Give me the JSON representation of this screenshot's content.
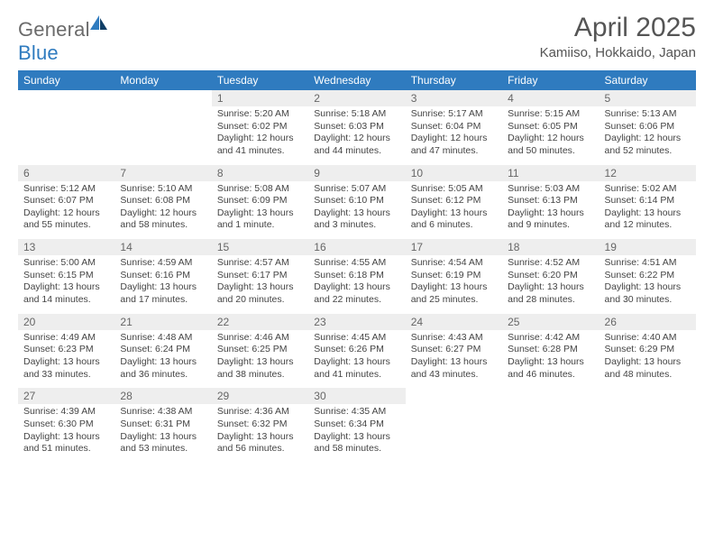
{
  "brand": {
    "general": "General",
    "blue": "Blue"
  },
  "title": "April 2025",
  "location": "Kamiiso, Hokkaido, Japan",
  "colors": {
    "header_bg": "#2f7bbf",
    "header_text": "#ffffff",
    "daynum_bg": "#eeeeee",
    "rule": "#2f7bbf",
    "page_bg": "#ffffff",
    "text": "#444444",
    "title_text": "#555555"
  },
  "typography": {
    "title_fontsize": 30,
    "location_fontsize": 15,
    "header_fontsize": 12,
    "daynum_fontsize": 12,
    "body_fontsize": 10.5
  },
  "weekdays": [
    "Sunday",
    "Monday",
    "Tuesday",
    "Wednesday",
    "Thursday",
    "Friday",
    "Saturday"
  ],
  "weeks": [
    [
      {
        "empty": true
      },
      {
        "empty": true
      },
      {
        "day": "1",
        "sunrise": "Sunrise: 5:20 AM",
        "sunset": "Sunset: 6:02 PM",
        "daylight": "Daylight: 12 hours and 41 minutes."
      },
      {
        "day": "2",
        "sunrise": "Sunrise: 5:18 AM",
        "sunset": "Sunset: 6:03 PM",
        "daylight": "Daylight: 12 hours and 44 minutes."
      },
      {
        "day": "3",
        "sunrise": "Sunrise: 5:17 AM",
        "sunset": "Sunset: 6:04 PM",
        "daylight": "Daylight: 12 hours and 47 minutes."
      },
      {
        "day": "4",
        "sunrise": "Sunrise: 5:15 AM",
        "sunset": "Sunset: 6:05 PM",
        "daylight": "Daylight: 12 hours and 50 minutes."
      },
      {
        "day": "5",
        "sunrise": "Sunrise: 5:13 AM",
        "sunset": "Sunset: 6:06 PM",
        "daylight": "Daylight: 12 hours and 52 minutes."
      }
    ],
    [
      {
        "day": "6",
        "sunrise": "Sunrise: 5:12 AM",
        "sunset": "Sunset: 6:07 PM",
        "daylight": "Daylight: 12 hours and 55 minutes."
      },
      {
        "day": "7",
        "sunrise": "Sunrise: 5:10 AM",
        "sunset": "Sunset: 6:08 PM",
        "daylight": "Daylight: 12 hours and 58 minutes."
      },
      {
        "day": "8",
        "sunrise": "Sunrise: 5:08 AM",
        "sunset": "Sunset: 6:09 PM",
        "daylight": "Daylight: 13 hours and 1 minute."
      },
      {
        "day": "9",
        "sunrise": "Sunrise: 5:07 AM",
        "sunset": "Sunset: 6:10 PM",
        "daylight": "Daylight: 13 hours and 3 minutes."
      },
      {
        "day": "10",
        "sunrise": "Sunrise: 5:05 AM",
        "sunset": "Sunset: 6:12 PM",
        "daylight": "Daylight: 13 hours and 6 minutes."
      },
      {
        "day": "11",
        "sunrise": "Sunrise: 5:03 AM",
        "sunset": "Sunset: 6:13 PM",
        "daylight": "Daylight: 13 hours and 9 minutes."
      },
      {
        "day": "12",
        "sunrise": "Sunrise: 5:02 AM",
        "sunset": "Sunset: 6:14 PM",
        "daylight": "Daylight: 13 hours and 12 minutes."
      }
    ],
    [
      {
        "day": "13",
        "sunrise": "Sunrise: 5:00 AM",
        "sunset": "Sunset: 6:15 PM",
        "daylight": "Daylight: 13 hours and 14 minutes."
      },
      {
        "day": "14",
        "sunrise": "Sunrise: 4:59 AM",
        "sunset": "Sunset: 6:16 PM",
        "daylight": "Daylight: 13 hours and 17 minutes."
      },
      {
        "day": "15",
        "sunrise": "Sunrise: 4:57 AM",
        "sunset": "Sunset: 6:17 PM",
        "daylight": "Daylight: 13 hours and 20 minutes."
      },
      {
        "day": "16",
        "sunrise": "Sunrise: 4:55 AM",
        "sunset": "Sunset: 6:18 PM",
        "daylight": "Daylight: 13 hours and 22 minutes."
      },
      {
        "day": "17",
        "sunrise": "Sunrise: 4:54 AM",
        "sunset": "Sunset: 6:19 PM",
        "daylight": "Daylight: 13 hours and 25 minutes."
      },
      {
        "day": "18",
        "sunrise": "Sunrise: 4:52 AM",
        "sunset": "Sunset: 6:20 PM",
        "daylight": "Daylight: 13 hours and 28 minutes."
      },
      {
        "day": "19",
        "sunrise": "Sunrise: 4:51 AM",
        "sunset": "Sunset: 6:22 PM",
        "daylight": "Daylight: 13 hours and 30 minutes."
      }
    ],
    [
      {
        "day": "20",
        "sunrise": "Sunrise: 4:49 AM",
        "sunset": "Sunset: 6:23 PM",
        "daylight": "Daylight: 13 hours and 33 minutes."
      },
      {
        "day": "21",
        "sunrise": "Sunrise: 4:48 AM",
        "sunset": "Sunset: 6:24 PM",
        "daylight": "Daylight: 13 hours and 36 minutes."
      },
      {
        "day": "22",
        "sunrise": "Sunrise: 4:46 AM",
        "sunset": "Sunset: 6:25 PM",
        "daylight": "Daylight: 13 hours and 38 minutes."
      },
      {
        "day": "23",
        "sunrise": "Sunrise: 4:45 AM",
        "sunset": "Sunset: 6:26 PM",
        "daylight": "Daylight: 13 hours and 41 minutes."
      },
      {
        "day": "24",
        "sunrise": "Sunrise: 4:43 AM",
        "sunset": "Sunset: 6:27 PM",
        "daylight": "Daylight: 13 hours and 43 minutes."
      },
      {
        "day": "25",
        "sunrise": "Sunrise: 4:42 AM",
        "sunset": "Sunset: 6:28 PM",
        "daylight": "Daylight: 13 hours and 46 minutes."
      },
      {
        "day": "26",
        "sunrise": "Sunrise: 4:40 AM",
        "sunset": "Sunset: 6:29 PM",
        "daylight": "Daylight: 13 hours and 48 minutes."
      }
    ],
    [
      {
        "day": "27",
        "sunrise": "Sunrise: 4:39 AM",
        "sunset": "Sunset: 6:30 PM",
        "daylight": "Daylight: 13 hours and 51 minutes."
      },
      {
        "day": "28",
        "sunrise": "Sunrise: 4:38 AM",
        "sunset": "Sunset: 6:31 PM",
        "daylight": "Daylight: 13 hours and 53 minutes."
      },
      {
        "day": "29",
        "sunrise": "Sunrise: 4:36 AM",
        "sunset": "Sunset: 6:32 PM",
        "daylight": "Daylight: 13 hours and 56 minutes."
      },
      {
        "day": "30",
        "sunrise": "Sunrise: 4:35 AM",
        "sunset": "Sunset: 6:34 PM",
        "daylight": "Daylight: 13 hours and 58 minutes."
      },
      {
        "empty": true
      },
      {
        "empty": true
      },
      {
        "empty": true
      }
    ]
  ]
}
